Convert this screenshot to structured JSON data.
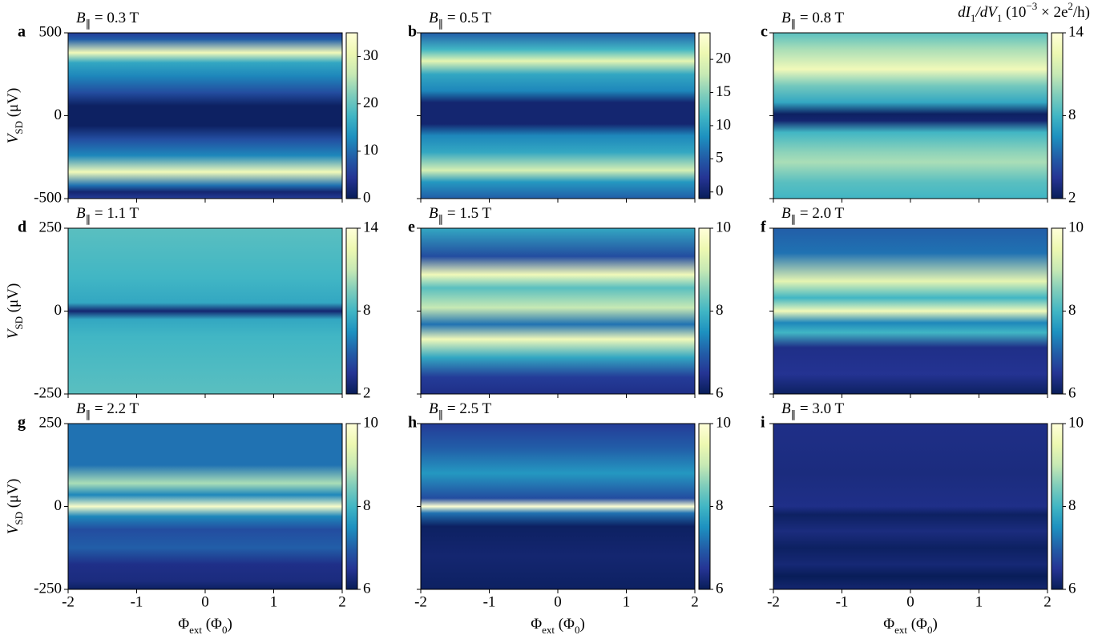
{
  "chart_data": [
    {
      "type": "heatmap",
      "panel_label": "a",
      "title": [
        {
          "text": "B",
          "italic": true
        },
        {
          "text": "∥",
          "shift": "sub"
        },
        {
          "text": " = 0.3 T"
        }
      ],
      "xlim": [
        -2,
        2
      ],
      "xticks": [
        -2,
        -1,
        0,
        1,
        2
      ],
      "ylim": [
        -500,
        500
      ],
      "yticks": [
        -500,
        0,
        500
      ],
      "ylabel": [
        {
          "text": "V",
          "italic": true
        },
        {
          "text": "SD",
          "shift": "sub"
        },
        {
          "text": " (μV)"
        }
      ],
      "clim": [
        0,
        35
      ],
      "cticks": [
        0,
        10,
        20,
        30
      ]
    },
    {
      "type": "heatmap",
      "panel_label": "b",
      "title": [
        {
          "text": "B",
          "italic": true
        },
        {
          "text": "∥",
          "shift": "sub"
        },
        {
          "text": " = 0.5 T"
        }
      ],
      "xlim": [
        -2,
        2
      ],
      "xticks": [
        -2,
        -1,
        0,
        1,
        2
      ],
      "ylim": [
        -500,
        500
      ],
      "yticks": [
        -500,
        0,
        500
      ],
      "clim": [
        -1,
        24
      ],
      "cticks": [
        0,
        5,
        10,
        15,
        20
      ]
    },
    {
      "type": "heatmap",
      "panel_label": "c",
      "title": [
        {
          "text": "B",
          "italic": true
        },
        {
          "text": "∥",
          "shift": "sub"
        },
        {
          "text": " = 0.8 T"
        }
      ],
      "xlim": [
        -2,
        2
      ],
      "xticks": [
        -2,
        -1,
        0,
        1,
        2
      ],
      "ylim": [
        -500,
        500
      ],
      "yticks": [
        -500,
        0,
        500
      ],
      "clim": [
        2,
        14
      ],
      "cticks": [
        2,
        8,
        14
      ],
      "colorbar_label": [
        {
          "text": "dI",
          "italic": true
        },
        {
          "text": "1",
          "shift": "sub"
        },
        {
          "text": "/dV",
          "italic": true
        },
        {
          "text": "1",
          "shift": "sub"
        },
        {
          "text": " (10"
        },
        {
          "text": "−3",
          "shift": "sup"
        },
        {
          "text": " × 2e"
        },
        {
          "text": "2",
          "shift": "sup"
        },
        {
          "text": "/h)"
        }
      ]
    },
    {
      "type": "heatmap",
      "panel_label": "d",
      "title": [
        {
          "text": "B",
          "italic": true
        },
        {
          "text": "∥",
          "shift": "sub"
        },
        {
          "text": " = 1.1 T"
        }
      ],
      "xlim": [
        -2,
        2
      ],
      "xticks": [
        -2,
        -1,
        0,
        1,
        2
      ],
      "ylim": [
        -250,
        250
      ],
      "yticks": [
        -250,
        0,
        250
      ],
      "ylabel": [
        {
          "text": "V",
          "italic": true
        },
        {
          "text": "SD",
          "shift": "sub"
        },
        {
          "text": " (μV)"
        }
      ],
      "clim": [
        2,
        14
      ],
      "cticks": [
        2,
        8,
        14
      ]
    },
    {
      "type": "heatmap",
      "panel_label": "e",
      "title": [
        {
          "text": "B",
          "italic": true
        },
        {
          "text": "∥",
          "shift": "sub"
        },
        {
          "text": " = 1.5 T"
        }
      ],
      "xlim": [
        -2,
        2
      ],
      "xticks": [
        -2,
        -1,
        0,
        1,
        2
      ],
      "ylim": [
        -250,
        250
      ],
      "yticks": [
        -250,
        0,
        250
      ],
      "clim": [
        6,
        10
      ],
      "cticks": [
        6,
        8,
        10
      ]
    },
    {
      "type": "heatmap",
      "panel_label": "f",
      "title": [
        {
          "text": "B",
          "italic": true
        },
        {
          "text": "∥",
          "shift": "sub"
        },
        {
          "text": " = 2.0 T"
        }
      ],
      "xlim": [
        -2,
        2
      ],
      "xticks": [
        -2,
        -1,
        0,
        1,
        2
      ],
      "ylim": [
        -250,
        250
      ],
      "yticks": [
        -250,
        0,
        250
      ],
      "clim": [
        6,
        10
      ],
      "cticks": [
        6,
        8,
        10
      ]
    },
    {
      "type": "heatmap",
      "panel_label": "g",
      "title": [
        {
          "text": "B",
          "italic": true
        },
        {
          "text": "∥",
          "shift": "sub"
        },
        {
          "text": " = 2.2 T"
        }
      ],
      "xlim": [
        -2,
        2
      ],
      "xticks": [
        -2,
        -1,
        0,
        1,
        2
      ],
      "ylim": [
        -250,
        250
      ],
      "yticks": [
        -250,
        0,
        250
      ],
      "ylabel": [
        {
          "text": "V",
          "italic": true
        },
        {
          "text": "SD",
          "shift": "sub"
        },
        {
          "text": " (μV)"
        }
      ],
      "xlabel": [
        {
          "text": "Φ"
        },
        {
          "text": "ext",
          "shift": "sub"
        },
        {
          "text": " (Φ"
        },
        {
          "text": "0",
          "shift": "sub"
        },
        {
          "text": ")"
        }
      ],
      "clim": [
        6,
        10
      ],
      "cticks": [
        6,
        8,
        10
      ]
    },
    {
      "type": "heatmap",
      "panel_label": "h",
      "title": [
        {
          "text": "B",
          "italic": true
        },
        {
          "text": "∥",
          "shift": "sub"
        },
        {
          "text": " = 2.5 T"
        }
      ],
      "xlim": [
        -2,
        2
      ],
      "xticks": [
        -2,
        -1,
        0,
        1,
        2
      ],
      "ylim": [
        -250,
        250
      ],
      "yticks": [
        -250,
        0,
        250
      ],
      "xlabel": [
        {
          "text": "Φ"
        },
        {
          "text": "ext",
          "shift": "sub"
        },
        {
          "text": " (Φ"
        },
        {
          "text": "0",
          "shift": "sub"
        },
        {
          "text": ")"
        }
      ],
      "clim": [
        6,
        10
      ],
      "cticks": [
        6,
        8,
        10
      ]
    },
    {
      "type": "heatmap",
      "panel_label": "i",
      "title": [
        {
          "text": "B",
          "italic": true
        },
        {
          "text": "∥",
          "shift": "sub"
        },
        {
          "text": " = 3.0 T"
        }
      ],
      "xlim": [
        -2,
        2
      ],
      "xticks": [
        -2,
        -1,
        0,
        1,
        2
      ],
      "ylim": [
        -250,
        250
      ],
      "yticks": [
        -250,
        0,
        250
      ],
      "xlabel": [
        {
          "text": "Φ"
        },
        {
          "text": "ext",
          "shift": "sub"
        },
        {
          "text": " (Φ"
        },
        {
          "text": "0",
          "shift": "sub"
        },
        {
          "text": ")"
        }
      ],
      "clim": [
        6,
        10
      ],
      "cticks": [
        6,
        8,
        10
      ]
    }
  ]
}
